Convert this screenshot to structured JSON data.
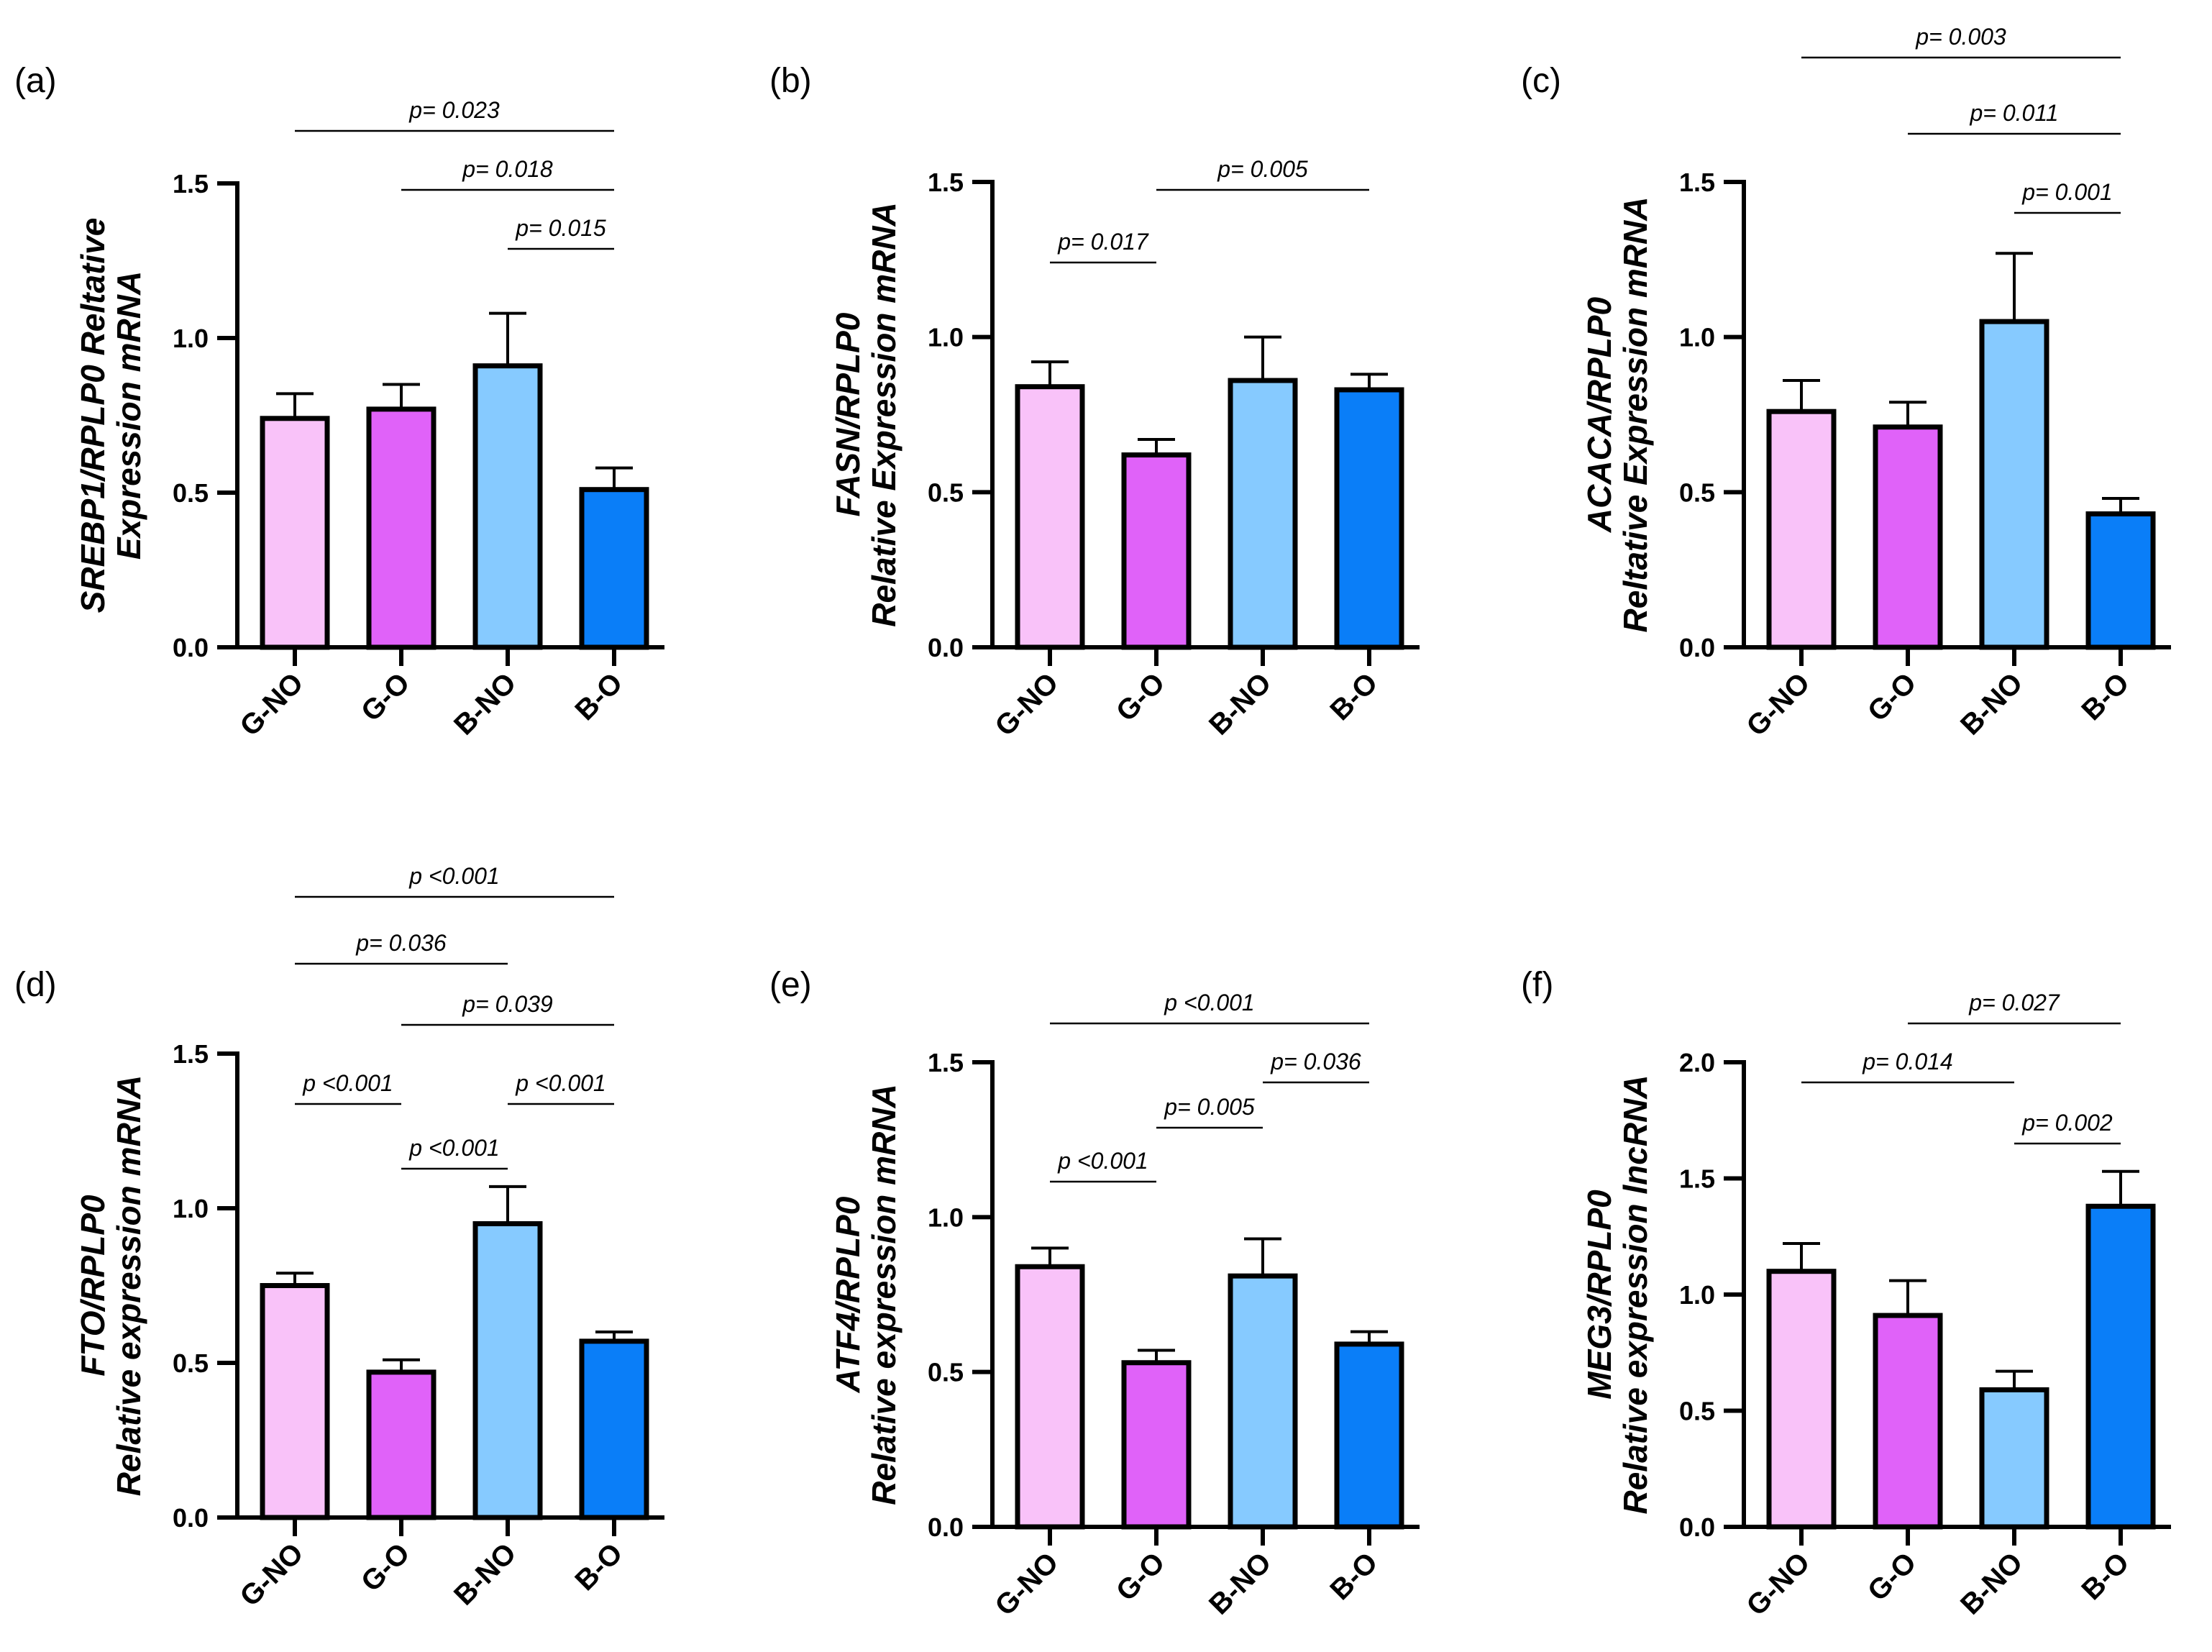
{
  "figure": {
    "colors": {
      "G-NO": "#f9c2f9",
      "G-O": "#e062f9",
      "B-NO": "#86caff",
      "B-O": "#0a7ef8"
    }
  },
  "chart_data": [
    {
      "panel": "(a)",
      "type": "bar",
      "categories": [
        "G-NO",
        "G-O",
        "B-NO",
        "B-O"
      ],
      "values": [
        0.74,
        0.77,
        0.91,
        0.51
      ],
      "errors": [
        0.08,
        0.08,
        0.17,
        0.07
      ],
      "ylabel_lines": [
        "SREBP1/RPLP0 Reltative",
        "Expression mRNA"
      ],
      "ylim": [
        0,
        1.5
      ],
      "yticks": [
        0.0,
        0.5,
        1.0,
        1.5
      ],
      "ytick_labels": [
        "0.0",
        "0.5",
        "1.0",
        "1.5"
      ],
      "comparisons": [
        {
          "from": 0,
          "to": 3,
          "label": "p= 0.023",
          "level": 0.0
        },
        {
          "from": 1,
          "to": 3,
          "label": "p= 0.018",
          "level": 0.0
        },
        {
          "from": 2,
          "to": 3,
          "label": "p= 0.015",
          "level": 0.0
        }
      ]
    },
    {
      "panel": "(b)",
      "type": "bar",
      "categories": [
        "G-NO",
        "G-O",
        "B-NO",
        "B-O"
      ],
      "values": [
        0.84,
        0.62,
        0.86,
        0.83
      ],
      "errors": [
        0.08,
        0.05,
        0.14,
        0.05
      ],
      "ylabel_lines": [
        "FASN/RPLP0",
        "Relative Expression mRNA"
      ],
      "ylim": [
        0,
        1.5
      ],
      "yticks": [
        0.0,
        0.5,
        1.0,
        1.5
      ],
      "ytick_labels": [
        "0.0",
        "0.5",
        "1.0",
        "1.5"
      ],
      "comparisons": [
        {
          "from": 1,
          "to": 3,
          "label": "p= 0.005",
          "level": 0.0
        },
        {
          "from": 0,
          "to": 1,
          "label": "p= 0.017",
          "level": 0.0
        }
      ]
    },
    {
      "panel": "(c)",
      "type": "bar",
      "categories": [
        "G-NO",
        "G-O",
        "B-NO",
        "B-O"
      ],
      "values": [
        0.76,
        0.71,
        1.05,
        0.43
      ],
      "errors": [
        0.1,
        0.08,
        0.22,
        0.05
      ],
      "ylabel_lines": [
        "ACACA/RPLP0",
        "Reltative Expression mRNA"
      ],
      "ylim": [
        0,
        1.5
      ],
      "yticks": [
        0.0,
        0.5,
        1.0,
        1.5
      ],
      "ytick_labels": [
        "0.0",
        "0.5",
        "1.0",
        "1.5"
      ],
      "comparisons": [
        {
          "from": 0,
          "to": 3,
          "label": "p= 0.003",
          "level": 0.0
        },
        {
          "from": 1,
          "to": 3,
          "label": "p= 0.011",
          "level": 0.0
        },
        {
          "from": 2,
          "to": 3,
          "label": "p= 0.001",
          "level": 0.0
        }
      ]
    },
    {
      "panel": "(d)",
      "type": "bar",
      "categories": [
        "G-NO",
        "G-O",
        "B-NO",
        "B-O"
      ],
      "values": [
        0.75,
        0.47,
        0.95,
        0.57
      ],
      "errors": [
        0.04,
        0.04,
        0.12,
        0.03
      ],
      "ylabel_lines": [
        "FTO/RPLP0",
        "Relative expression mRNA"
      ],
      "ylim": [
        0,
        1.5
      ],
      "yticks": [
        0.0,
        0.5,
        1.0,
        1.5
      ],
      "ytick_labels": [
        "0.0",
        "0.5",
        "1.0",
        "1.5"
      ],
      "comparisons": [
        {
          "from": 0,
          "to": 3,
          "label": "p <0.001",
          "level": 0.0
        },
        {
          "from": 0,
          "to": 2,
          "label": "p= 0.036",
          "level": 0.0
        },
        {
          "from": 1,
          "to": 3,
          "label": "p= 0.039",
          "level": 0.0
        },
        {
          "from": 0,
          "to": 1,
          "label": "p <0.001",
          "level": 0.0
        },
        {
          "from": 2,
          "to": 3,
          "label": "p <0.001",
          "level": 0.0
        },
        {
          "from": 1,
          "to": 2,
          "label": "p <0.001",
          "level": 0.0
        }
      ]
    },
    {
      "panel": "(e)",
      "type": "bar",
      "categories": [
        "G-NO",
        "G-O",
        "B-NO",
        "B-O"
      ],
      "values": [
        0.84,
        0.53,
        0.81,
        0.59
      ],
      "errors": [
        0.06,
        0.04,
        0.12,
        0.04
      ],
      "ylabel_lines": [
        "ATF4/RPLP0",
        "Relative expression mRNA"
      ],
      "ylim": [
        0,
        1.5
      ],
      "yticks": [
        0.0,
        0.5,
        1.0,
        1.5
      ],
      "ytick_labels": [
        "0.0",
        "0.5",
        "1.0",
        "1.5"
      ],
      "comparisons": [
        {
          "from": 0,
          "to": 3,
          "label": "p <0.001",
          "level": 0.0
        },
        {
          "from": 2,
          "to": 3,
          "label": "p= 0.036",
          "level": 0.0
        },
        {
          "from": 1,
          "to": 2,
          "label": "p= 0.005",
          "level": 0.0
        },
        {
          "from": 0,
          "to": 1,
          "label": "p <0.001",
          "level": 0.0
        }
      ]
    },
    {
      "panel": "(f)",
      "type": "bar",
      "categories": [
        "G-NO",
        "G-O",
        "B-NO",
        "B-O"
      ],
      "values": [
        1.1,
        0.91,
        0.59,
        1.38
      ],
      "errors": [
        0.12,
        0.15,
        0.08,
        0.15
      ],
      "ylabel_lines": [
        "MEG3/RPLP0",
        "Relative expression lncRNA"
      ],
      "ylim": [
        0,
        2.0
      ],
      "yticks": [
        0.0,
        0.5,
        1.0,
        1.5,
        2.0
      ],
      "ytick_labels": [
        "0.0",
        "0.5",
        "1.0",
        "1.5",
        "2.0"
      ],
      "comparisons": [
        {
          "from": 1,
          "to": 3,
          "label": "p= 0.027",
          "level": 0.0
        },
        {
          "from": 0,
          "to": 2,
          "label": "p= 0.014",
          "level": 0.0
        },
        {
          "from": 2,
          "to": 3,
          "label": "p= 0.002",
          "level": 0.0
        }
      ]
    }
  ]
}
